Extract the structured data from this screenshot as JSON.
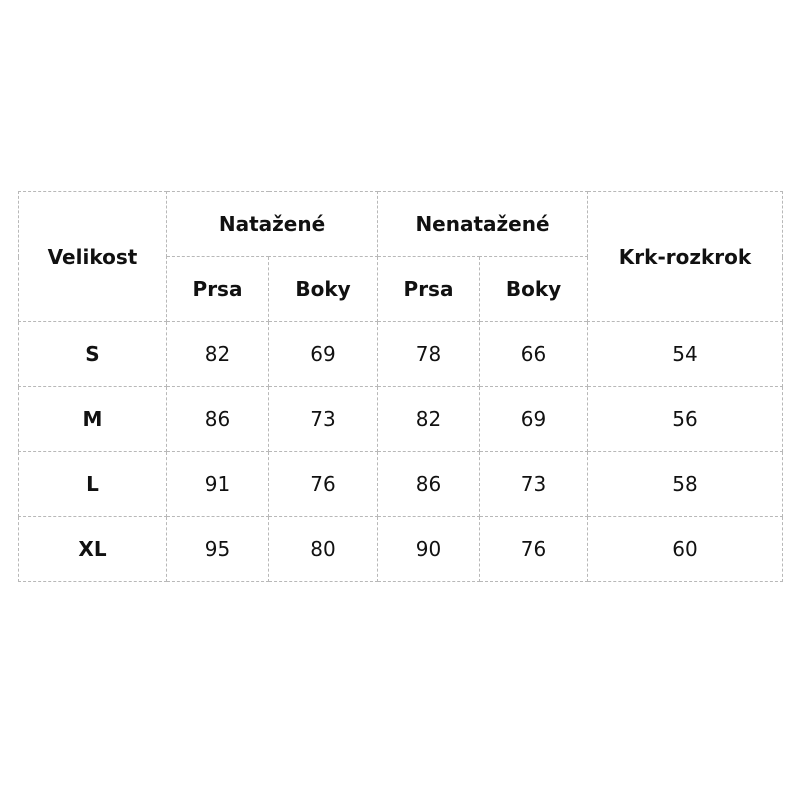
{
  "headers": {
    "size": "Velikost",
    "stretched": "Natažené",
    "unstretched": "Nenatažené",
    "neck_crotch": "Krk-rozkrok",
    "chest": "Prsa",
    "hips": "Boky"
  },
  "rows": [
    {
      "size": "S",
      "stretched_chest": "82",
      "stretched_hips": "69",
      "unstretched_chest": "78",
      "unstretched_hips": "66",
      "neck_crotch": "54"
    },
    {
      "size": "M",
      "stretched_chest": "86",
      "stretched_hips": "73",
      "unstretched_chest": "82",
      "unstretched_hips": "69",
      "neck_crotch": "56"
    },
    {
      "size": "L",
      "stretched_chest": "91",
      "stretched_hips": "76",
      "unstretched_chest": "86",
      "unstretched_hips": "73",
      "neck_crotch": "58"
    },
    {
      "size": "XL",
      "stretched_chest": "95",
      "stretched_hips": "80",
      "unstretched_chest": "90",
      "unstretched_hips": "76",
      "neck_crotch": "60"
    }
  ]
}
